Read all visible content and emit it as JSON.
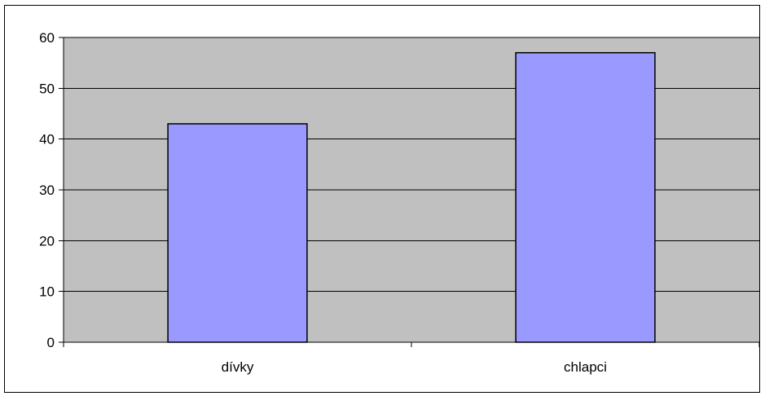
{
  "chart_data": {
    "type": "bar",
    "categories": [
      "dívky",
      "chlapci"
    ],
    "values": [
      43,
      57
    ],
    "ylim": [
      0,
      60
    ],
    "yticks": [
      0,
      10,
      20,
      30,
      40,
      50,
      60
    ],
    "grid": true,
    "legend": "none",
    "colors": {
      "bar_fill": "#9999FF",
      "bar_stroke": "#000000",
      "plot_background": "#C0C0C0",
      "gridline": "#000000"
    }
  }
}
